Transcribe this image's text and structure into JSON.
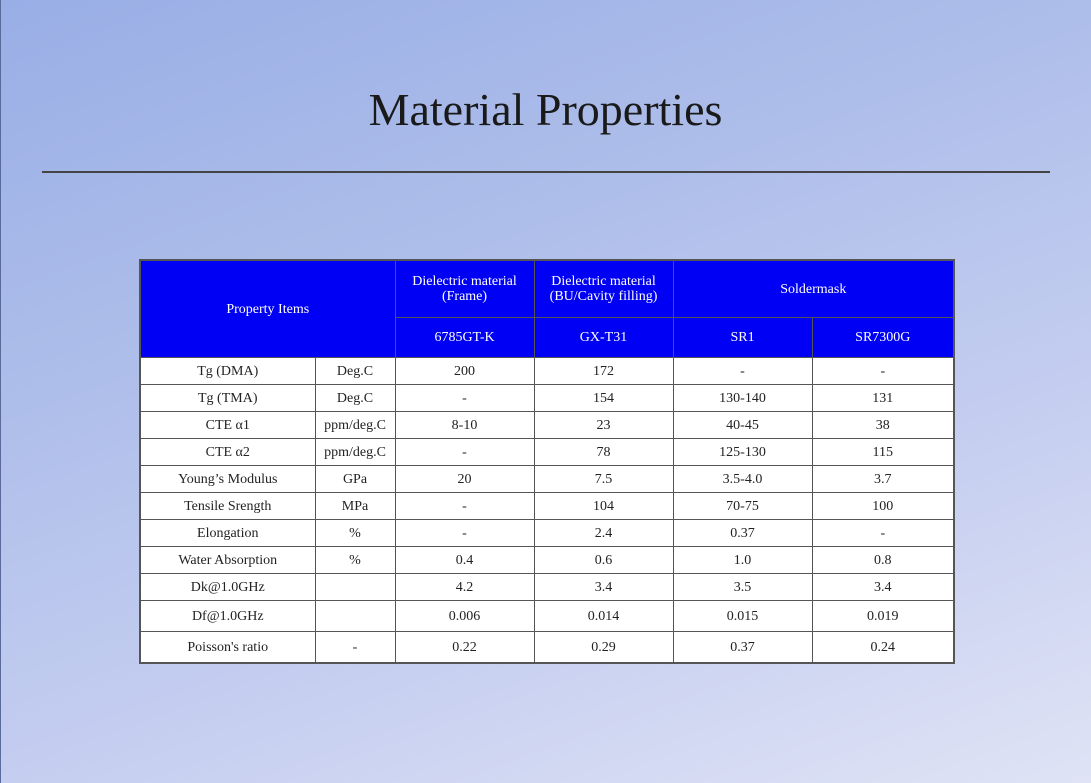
{
  "title": "Material Properties",
  "table": {
    "header": {
      "property_items": "Property Items",
      "groups": [
        {
          "line1": "Dielectric material",
          "line2": "(Frame)"
        },
        {
          "line1": "Dielectric material",
          "line2": "(BU/Cavity filling)"
        },
        {
          "line1": "Soldermask",
          "line2": ""
        }
      ],
      "materials": [
        "6785GT-K",
        "GX-T31",
        "SR1",
        "SR7300G"
      ]
    },
    "rows": [
      {
        "property": "Tg (DMA)",
        "unit": "Deg.C",
        "values": [
          "200",
          "172",
          "-",
          "-"
        ]
      },
      {
        "property": "Tg (TMA)",
        "unit": "Deg.C",
        "values": [
          "-",
          "154",
          "130-140",
          "131"
        ]
      },
      {
        "property": "CTE α1",
        "unit": "ppm/deg.C",
        "values": [
          "8-10",
          "23",
          "40-45",
          "38"
        ]
      },
      {
        "property": "CTE α2",
        "unit": "ppm/deg.C",
        "values": [
          "-",
          "78",
          "125-130",
          "115"
        ]
      },
      {
        "property": "Young’s Modulus",
        "unit": "GPa",
        "values": [
          "20",
          "7.5",
          "3.5-4.0",
          "3.7"
        ]
      },
      {
        "property": "Tensile Srength",
        "unit": "MPa",
        "values": [
          "-",
          "104",
          "70-75",
          "100"
        ]
      },
      {
        "property": "Elongation",
        "unit": "%",
        "values": [
          "-",
          "2.4",
          "0.37",
          "-"
        ]
      },
      {
        "property": "Water Absorption",
        "unit": "%",
        "values": [
          "0.4",
          "0.6",
          "1.0",
          "0.8"
        ]
      },
      {
        "property": "Dk@1.0GHz",
        "unit": "",
        "values": [
          "4.2",
          "3.4",
          "3.5",
          "3.4"
        ]
      },
      {
        "property": "Df@1.0GHz",
        "unit": "",
        "values": [
          "0.006",
          "0.014",
          "0.015",
          "0.019"
        ]
      },
      {
        "property": "Poisson's ratio",
        "unit": "-",
        "values": [
          "0.22",
          "0.29",
          "0.37",
          "0.24"
        ]
      }
    ]
  },
  "colors": {
    "header_bg": "#0000f5",
    "header_text": "#ffffff"
  }
}
